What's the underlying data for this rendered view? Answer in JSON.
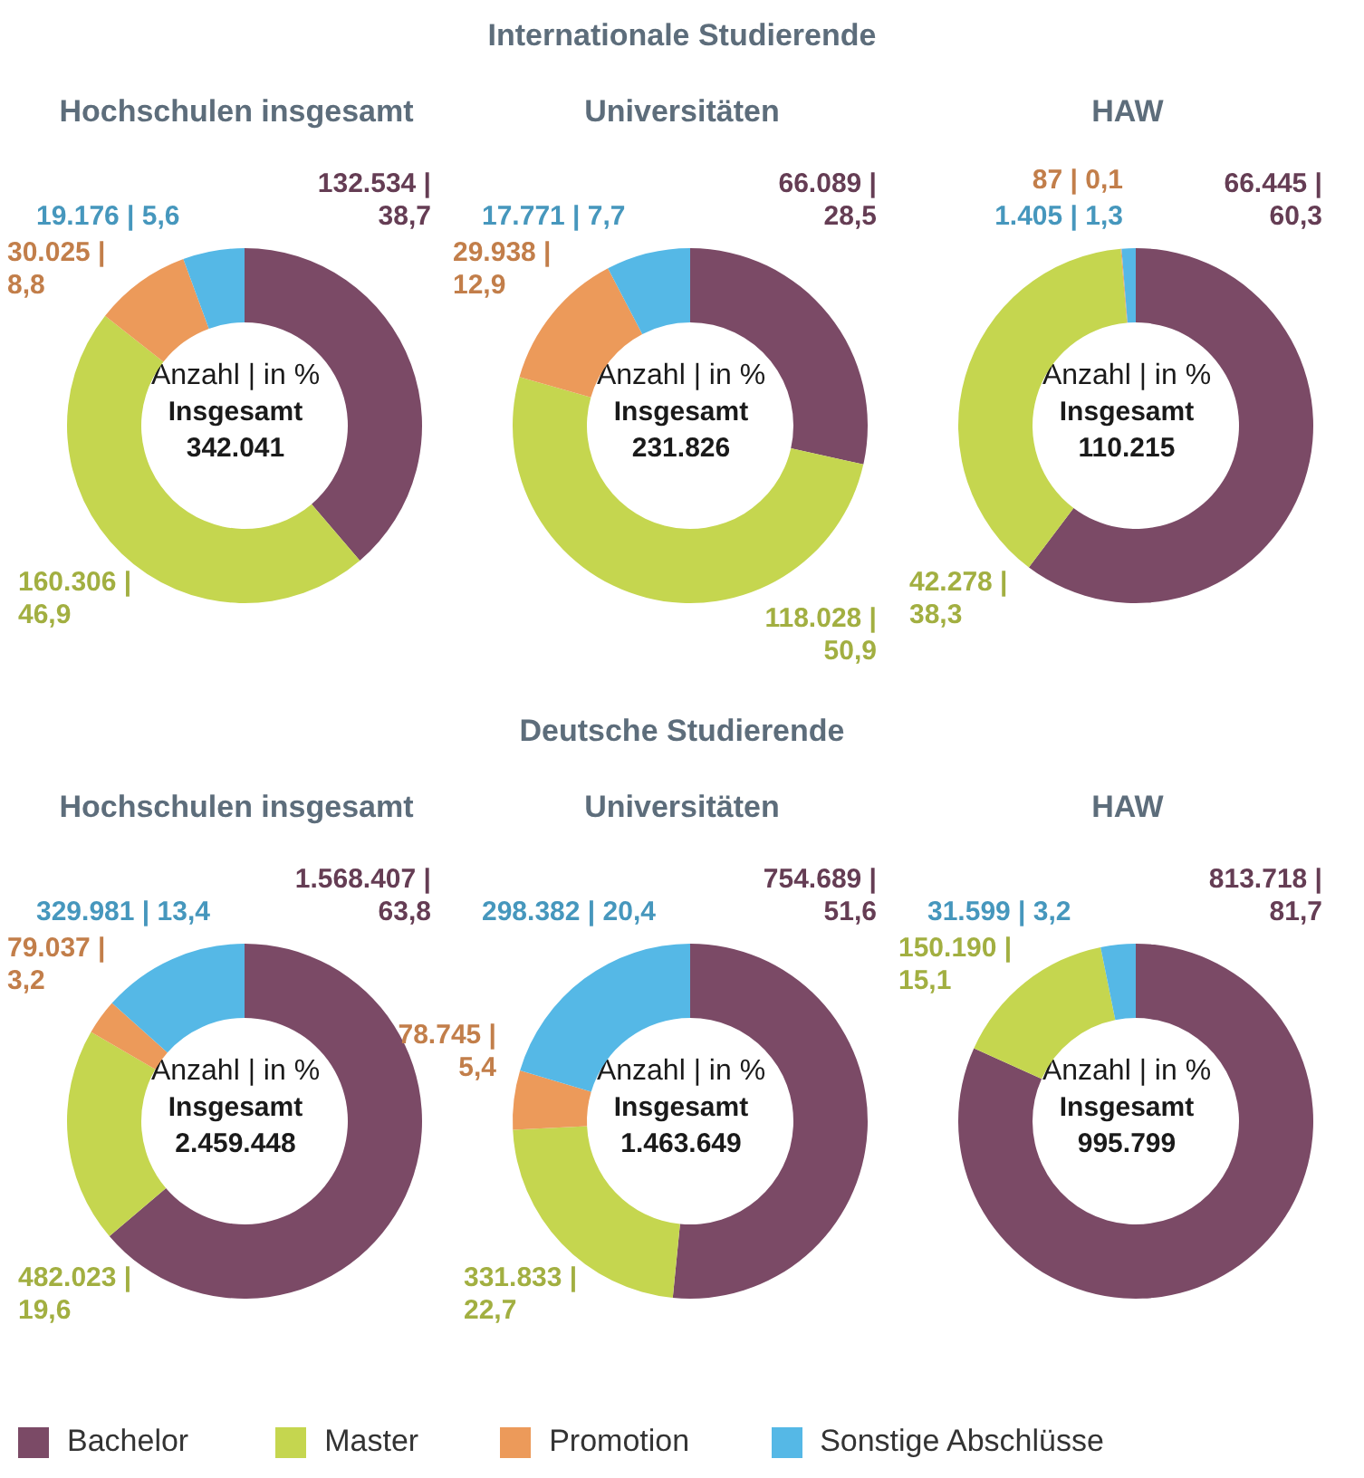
{
  "chart_data": [
    {
      "type": "donut",
      "title": "Hochschulen insgesamt",
      "categories": [
        null,
        null,
        null,
        null
      ],
      "colors": [
        "#7b4a66",
        "#c5d64f",
        "#ec9a5a",
        "#55b8e6"
      ],
      "values": [
        132534,
        160306,
        30025,
        19176
      ],
      "value_labels": [
        "132.534 | 38,7",
        "160.306 | 46,9",
        "30.025 | 8,8",
        "19.176 | 5,6"
      ],
      "annotations": [
        "Anzahl | in %",
        "Insgesamt",
        "342.041",
        "Internationale Studierende"
      ]
    },
    {
      "type": "donut",
      "title": "Universitäten",
      "categories": [
        null,
        null,
        null,
        null
      ],
      "colors": [
        "#7b4a66",
        "#c5d64f",
        "#ec9a5a",
        "#55b8e6"
      ],
      "values": [
        66089,
        118028,
        29938,
        17771
      ],
      "value_labels": [
        "66.089 | 28,5",
        "118.028 | 50,9",
        "29.938 | 12,9",
        "17.771 | 7,7"
      ],
      "annotations": [
        "Anzahl | in %",
        "Insgesamt",
        "231.826"
      ]
    },
    {
      "type": "donut",
      "title": "HAW",
      "categories": [
        null,
        null,
        null,
        null
      ],
      "colors": [
        "#7b4a66",
        "#c5d64f",
        "#ec9a5a",
        "#55b8e6"
      ],
      "values": [
        66445,
        42278,
        87,
        1405
      ],
      "value_labels": [
        "66.445 | 60,3",
        "42.278 | 38,3",
        "87 | 0,1",
        "1.405 | 1,3"
      ],
      "annotations": [
        "Anzahl | in %",
        "Insgesamt",
        "110.215"
      ]
    },
    {
      "type": "donut",
      "title": "Hochschulen insgesamt",
      "categories": [
        null,
        null,
        null,
        null
      ],
      "colors": [
        "#7b4a66",
        "#c5d64f",
        "#ec9a5a",
        "#55b8e6"
      ],
      "values": [
        1568407,
        482023,
        79037,
        329981
      ],
      "value_labels": [
        "1.568.407 | 63,8",
        "482.023 | 19,6",
        "79.037 | 3,2",
        "329.981 | 13,4"
      ],
      "annotations": [
        "Anzahl | in %",
        "Insgesamt",
        "2.459.448",
        "Deutsche Studierende"
      ]
    },
    {
      "type": "donut",
      "title": "Universitäten",
      "categories": [
        null,
        null,
        null,
        null
      ],
      "colors": [
        "#7b4a66",
        "#c5d64f",
        "#ec9a5a",
        "#55b8e6"
      ],
      "values": [
        754689,
        331833,
        78745,
        298382
      ],
      "value_labels": [
        "754.689 | 51,6",
        "331.833 | 22,7",
        "78.745 | 5,4",
        "298.382 | 20,4"
      ],
      "annotations": [
        "Anzahl | in %",
        "Insgesamt",
        "1.463.649"
      ]
    },
    {
      "type": "donut",
      "title": "HAW",
      "categories": [
        "Bachelor",
        "Master",
        "Promotion",
        "Sonstige Abschlüsse"
      ],
      "colors": [
        "#7b4a66",
        "#c5d64f",
        "#ec9a5a",
        "#55b8e6"
      ],
      "values": [
        813718,
        150190,
        null,
        31599
      ],
      "value_labels": [
        "813.718 | 81,7",
        "150.190 | 15,1",
        null,
        "31.599 | 3,2"
      ],
      "annotations": [
        "Anzahl | in %",
        "Insgesamt",
        "995.799"
      ],
      "legend": "bottom"
    }
  ]
}
